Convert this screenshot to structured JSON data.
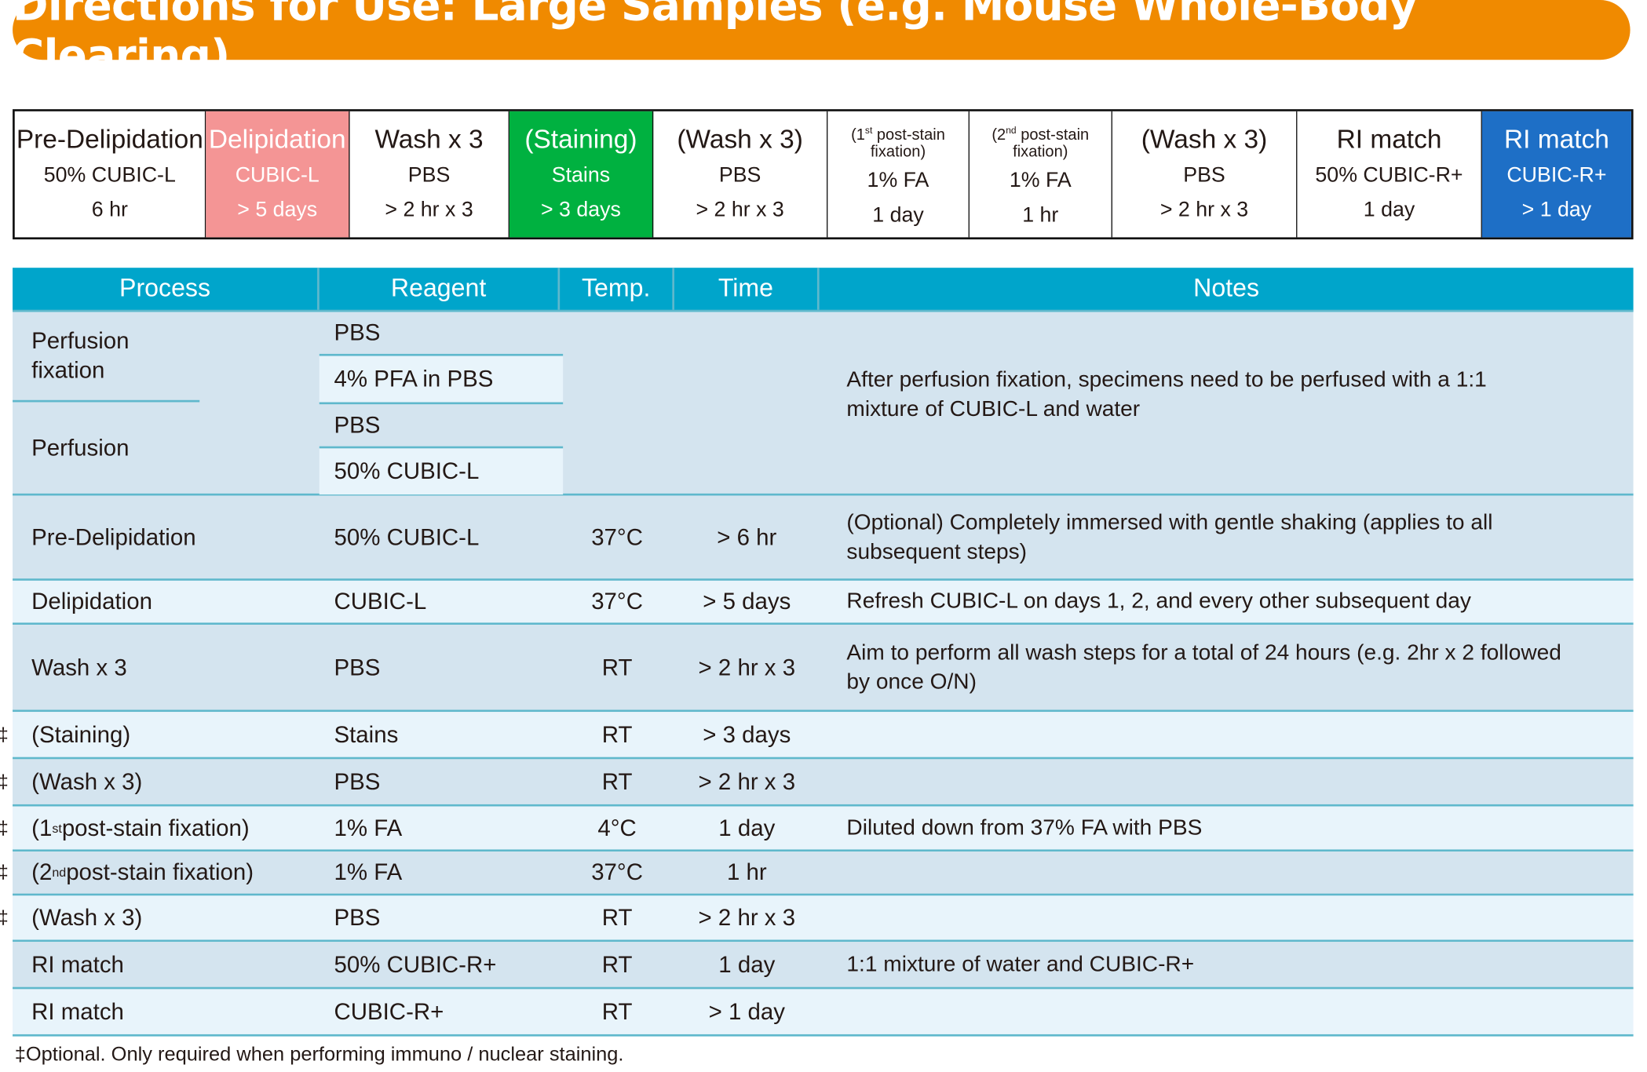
{
  "title": "Directions for Use: Large Samples (e.g. Mouse Whole-Body Clearing)",
  "stages": [
    {
      "name": "Pre-Delipidation",
      "reagent": "50% CUBIC-L",
      "time": "6 hr"
    },
    {
      "name": "Delipidation",
      "reagent": "CUBIC-L",
      "time": "> 5 days",
      "color": "#f49595"
    },
    {
      "name": "Wash x 3",
      "reagent": "PBS",
      "time": "> 2 hr x 3"
    },
    {
      "name": "(Staining)",
      "reagent": "Stains",
      "time": "> 3 days",
      "color": "#00b140"
    },
    {
      "name": "(Wash x 3)",
      "reagent": "PBS",
      "time": "> 2 hr x 3"
    },
    {
      "name_pre": "(1",
      "name_sup": "st",
      "name_post": " post-stain fixation)",
      "reagent": "1% FA",
      "time": "1 day"
    },
    {
      "name_pre": "(2",
      "name_sup": "nd",
      "name_post": " post-stain fixation)",
      "reagent": "1% FA",
      "time": "1 hr"
    },
    {
      "name": "(Wash x 3)",
      "reagent": "PBS",
      "time": "> 2 hr x 3"
    },
    {
      "name": "RI match",
      "reagent": "50% CUBIC-R+",
      "time": "1 day"
    },
    {
      "name": "RI match",
      "reagent": "CUBIC-R+",
      "time": "> 1 day",
      "color": "#1e6fc6"
    }
  ],
  "table": {
    "headers": [
      "Process",
      "Reagent",
      "Temp.",
      "Time",
      "Notes"
    ],
    "perfusion": {
      "fixation_label": "Perfusion fixation",
      "fixation_reagents": [
        "PBS",
        "4% PFA in PBS"
      ],
      "perfusion_label": "Perfusion",
      "perfusion_reagents": [
        "PBS",
        "50% CUBIC-L"
      ],
      "note": "After perfusion fixation, specimens need to be perfused with a 1:1 mixture of CUBIC-L and water"
    },
    "rows": [
      {
        "process": "Pre-Delipidation",
        "reagent": "50% CUBIC-L",
        "temp": "37°C",
        "time": "> 6 hr",
        "notes": "(Optional) Completely immersed with gentle shaking (applies to all subsequent steps)"
      },
      {
        "process": "Delipidation",
        "reagent": "CUBIC-L",
        "temp": "37°C",
        "time": "> 5 days",
        "notes": "Refresh CUBIC-L on days 1, 2, and every other subsequent day"
      },
      {
        "process": "Wash x 3",
        "reagent": "PBS",
        "temp": "RT",
        "time": "> 2 hr x 3",
        "notes": "Aim to perform all wash steps for a total of 24 hours (e.g. 2hr x 2 followed by once O/N)"
      },
      {
        "mark": "‡",
        "process": "(Staining)",
        "reagent": "Stains",
        "temp": "RT",
        "time": "> 3 days",
        "notes": ""
      },
      {
        "mark": "‡",
        "process": "(Wash x 3)",
        "reagent": "PBS",
        "temp": "RT",
        "time": "> 2 hr x 3",
        "notes": ""
      },
      {
        "mark": "‡",
        "process_pre": "(1",
        "process_sup": "st",
        "process_post": " post-stain fixation)",
        "reagent": "1% FA",
        "temp": "4°C",
        "time": "1 day",
        "notes": "Diluted down from 37% FA with PBS"
      },
      {
        "mark": "‡",
        "process_pre": "(2",
        "process_sup": "nd",
        "process_post": " post-stain fixation)",
        "reagent": "1% FA",
        "temp": "37°C",
        "time": "1 hr",
        "notes": ""
      },
      {
        "mark": "‡",
        "process": "(Wash x 3)",
        "reagent": "PBS",
        "temp": "RT",
        "time": "> 2 hr x 3",
        "notes": ""
      },
      {
        "process": "RI match",
        "reagent": "50% CUBIC-R+",
        "temp": "RT",
        "time": "1 day",
        "notes": "1:1 mixture of water and CUBIC-R+"
      },
      {
        "process": "RI match",
        "reagent": "CUBIC-R+",
        "temp": "RT",
        "time": "> 1 day",
        "notes": ""
      }
    ]
  },
  "footnote": "‡Optional. Only required when performing immuno / nuclear staining."
}
